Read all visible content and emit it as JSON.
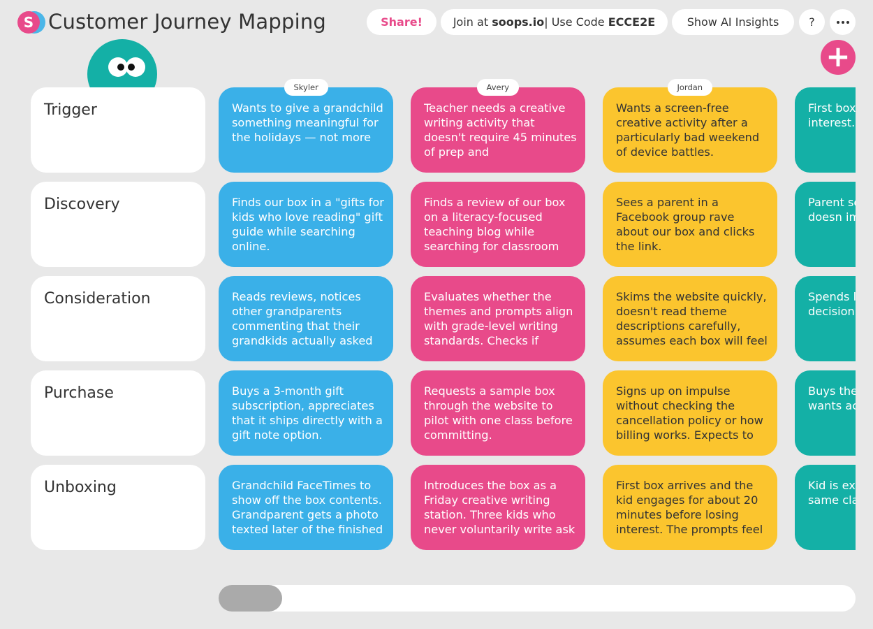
{
  "header": {
    "title": "Customer Journey Mapping",
    "logo_letter": "S",
    "share_label": "Share!",
    "join_prefix": "Join at ",
    "join_site": "soops.io",
    "join_mid": " | Use Code ",
    "join_code": "ECCE2E",
    "insights_label": "Show AI Insights",
    "help_label": "?",
    "add_label": "+"
  },
  "colors": {
    "pink": "#e84a8a",
    "blue": "#3ab0e8",
    "yellow": "#fbc52e",
    "teal": "#14b0a6",
    "background": "#e8e8e8"
  },
  "stages": [
    "Trigger",
    "Discovery",
    "Consideration",
    "Purchase",
    "Unboxing"
  ],
  "personas": [
    {
      "name": "Skyler",
      "color": "blue",
      "cards": [
        "Wants to give a grandchild something meaningful for the holidays — not more",
        "Finds our box in a \"gifts for kids who love reading\" gift guide while searching online.",
        "Reads reviews, notices other grandparents commenting that their grandkids actually asked",
        "Buys a 3-month gift subscription, appreciates that it ships directly with a gift note option.",
        "Grandchild FaceTimes to show off the box contents. Grandparent gets a photo texted later of the finished"
      ]
    },
    {
      "name": "Avery",
      "color": "pink",
      "cards": [
        "Teacher needs a creative writing activity that doesn't require 45 minutes of prep and",
        "Finds a review of our box on a literacy-focused teaching blog while searching for classroom",
        "Evaluates whether the themes and prompts align with grade-level writing standards. Checks if",
        "Requests a sample box through the website to pilot with one class before committing.",
        "Introduces the box as a Friday creative writing station. Three kids who never voluntarily write ask"
      ]
    },
    {
      "name": "Jordan",
      "color": "yellow",
      "cards": [
        "Wants a screen-free creative activity after a particularly bad weekend of device battles.",
        "Sees a parent in a Facebook group rave about our box and clicks the link.",
        "Skims the website quickly, doesn't read theme descriptions carefully, assumes each box will feel",
        "Signs up on impulse without checking the cancellation policy or how billing works. Expects to",
        "First box arrives and the kid engages for about 20 minutes before losing interest. The prompts feel"
      ]
    },
    {
      "name": "",
      "color": "teal",
      "cards": [
        "First box kid enga minutes interest.",
        "Parent se for the b — doesn immedia",
        "Spends l evaluatin decision made. C",
        "Buys the rather th — wants actually u",
        "Kid is exc more inte the same classmat"
      ]
    }
  ],
  "scrollbar": {
    "position_fraction": 0.0,
    "visible_fraction": 0.1
  }
}
